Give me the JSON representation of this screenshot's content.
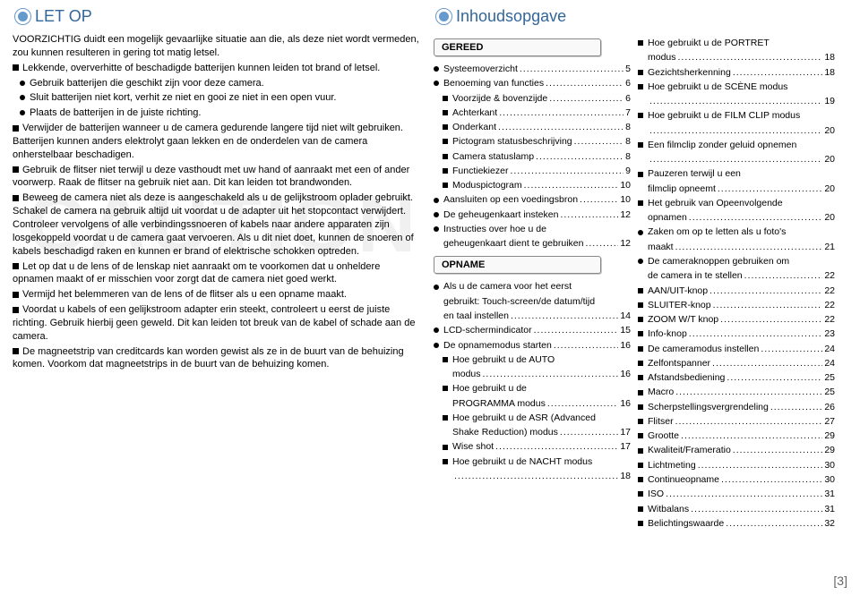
{
  "left": {
    "heading": "LET OP",
    "watermark": "CAUTION",
    "intro": "VOORZICHTIG duidt een mogelijk gevaarlijke situatie aan die, als deze niet wordt vermeden, zou kunnen resulteren in gering tot matig letsel.",
    "bullets": [
      {
        "text": "Lekkende, oververhitte of beschadigde batterijen kunnen leiden tot brand of letsel.",
        "subs": [
          "Gebruik batterijen die geschikt zijn voor deze camera.",
          "Sluit batterijen niet kort, verhit ze niet en gooi ze niet in een open vuur.",
          "Plaats de batterijen in de juiste richting."
        ]
      },
      {
        "text": "Verwijder de batterijen wanneer u de camera gedurende langere tijd niet wilt gebruiken. Batterijen kunnen anders elektrolyt gaan lekken en de onderdelen van de camera onherstelbaar beschadigen."
      },
      {
        "text": "Gebruik de flitser niet terwijl u deze vasthoudt met uw hand of aanraakt met een of ander voorwerp. Raak de flitser na gebruik niet aan. Dit kan leiden tot brandwonden."
      },
      {
        "text": "Beweeg de camera niet als deze is aangeschakeld als u de gelijkstroom oplader gebruikt. Schakel de camera na gebruik altijd uit voordat u de adapter uit het stopcontact verwijdert. Controleer vervolgens of alle verbindingssnoeren of kabels naar andere apparaten zijn losgekoppeld voordat u de camera gaat vervoeren. Als u dit niet doet, kunnen de snoeren of kabels beschadigd raken en kunnen er brand of elektrische schokken optreden."
      },
      {
        "text": "Let op dat u de lens of de lenskap niet aanraakt om te voorkomen dat u onheldere opnamen maakt of er misschien voor zorgt dat de camera niet goed werkt."
      },
      {
        "text": "Vermijd het belemmeren van de lens of de flitser als u een opname maakt."
      },
      {
        "text": "Voordat u kabels of een gelijkstroom adapter erin steekt, controleert u eerst de juiste richting. Gebruik hierbij geen geweld. Dit kan leiden tot breuk van de kabel of schade aan de camera."
      },
      {
        "text": "De magneetstrip van creditcards kan worden gewist als ze in de buurt van de behuizing komen. Voorkom dat magneetstrips in de buurt van de behuizing komen."
      }
    ]
  },
  "toc": {
    "heading": "Inhoudsopgave",
    "sections": [
      {
        "title": "GEREED"
      },
      {
        "title": "OPNAME"
      }
    ],
    "mid1": [
      {
        "label": "Systeemoverzicht",
        "pg": "5",
        "bullet": "dot"
      },
      {
        "label": "Benoeming van functies",
        "pg": "6",
        "bullet": "dot"
      },
      {
        "label": "Voorzijde & bovenzijde",
        "pg": "6",
        "bullet": "sq",
        "lvl": 2
      },
      {
        "label": "Achterkant",
        "pg": "7",
        "bullet": "sq",
        "lvl": 2
      },
      {
        "label": "Onderkant",
        "pg": "8",
        "bullet": "sq",
        "lvl": 2
      },
      {
        "label": "Pictogram statusbeschrijving",
        "pg": "8",
        "bullet": "sq",
        "lvl": 2
      },
      {
        "label": "Camera statuslamp",
        "pg": "8",
        "bullet": "sq",
        "lvl": 2
      },
      {
        "label": "Functiekiezer",
        "pg": "9",
        "bullet": "sq",
        "lvl": 2
      },
      {
        "label": "Moduspictogram",
        "pg": "10",
        "bullet": "sq",
        "lvl": 2
      },
      {
        "label": "Aansluiten op een voedingsbron",
        "pg": "10",
        "bullet": "dot"
      },
      {
        "label": "De geheugenkaart insteken",
        "pg": "12",
        "bullet": "dot"
      },
      {
        "label": "Instructies over hoe u de",
        "cont": "geheugenkaart dient te gebruiken",
        "pg": "12",
        "bullet": "dot"
      }
    ],
    "mid2": [
      {
        "label": "Als u de camera voor het eerst",
        "cont": "gebruikt: Touch-screen/de datum/tijd",
        "cont2": "en taal instellen",
        "pg": "14",
        "bullet": "dot"
      },
      {
        "label": "LCD-schermindicator",
        "pg": "15",
        "bullet": "dot"
      },
      {
        "label": "De opnamemodus starten",
        "pg": "16",
        "bullet": "dot"
      },
      {
        "label": "Hoe gebruikt u de AUTO",
        "cont": "modus",
        "pg": "16",
        "bullet": "sq",
        "lvl": 2
      },
      {
        "label": "Hoe gebruikt u de",
        "cont": "PROGRAMMA modus",
        "pg": "16",
        "bullet": "sq",
        "lvl": 2
      },
      {
        "label": "Hoe gebruikt u de ASR (Advanced",
        "cont": "Shake Reduction) modus",
        "pg": "17",
        "bullet": "sq",
        "lvl": 2
      },
      {
        "label": "Wise shot",
        "pg": "17",
        "bullet": "sq",
        "lvl": 2
      },
      {
        "label": "Hoe gebruikt u de NACHT modus",
        "pg": "18",
        "bullet": "sq",
        "lvl": 2,
        "pgline": true
      }
    ],
    "far": [
      {
        "label": "Hoe gebruikt u de PORTRET",
        "cont": "modus",
        "pg": "18",
        "bullet": "sq"
      },
      {
        "label": "Gezichtsherkenning",
        "pg": "18",
        "bullet": "sq"
      },
      {
        "label": "Hoe gebruikt u de SCÈNE modus",
        "pg": "19",
        "bullet": "sq",
        "pgline": true
      },
      {
        "label": "Hoe gebruikt u de FILM CLIP modus",
        "pg": "20",
        "bullet": "sq",
        "pgline": true
      },
      {
        "label": "Een filmclip zonder geluid opnemen",
        "pg": "20",
        "bullet": "sq",
        "pgline": true
      },
      {
        "label": "Pauzeren terwijl u een",
        "cont": "filmclip opneemt",
        "pg": "20",
        "bullet": "sq"
      },
      {
        "label": "Het gebruik van Opeenvolgende",
        "cont": "opnamen",
        "pg": "20",
        "bullet": "sq"
      },
      {
        "label": "Zaken om op te letten als u foto's",
        "cont": "maakt",
        "pg": "21",
        "bullet": "dot"
      },
      {
        "label": "De cameraknoppen gebruiken om",
        "cont": "de camera in te stellen",
        "pg": "22",
        "bullet": "dot"
      },
      {
        "label": "AAN/UIT-knop",
        "pg": "22",
        "bullet": "sq"
      },
      {
        "label": "SLUITER-knop",
        "pg": "22",
        "bullet": "sq"
      },
      {
        "label": "ZOOM W/T knop",
        "pg": "22",
        "bullet": "sq"
      },
      {
        "label": "Info-knop",
        "pg": "23",
        "bullet": "sq"
      },
      {
        "label": "De cameramodus instellen",
        "pg": "24",
        "bullet": "sq"
      },
      {
        "label": "Zelfontspanner",
        "pg": "24",
        "bullet": "sq"
      },
      {
        "label": "Afstandsbediening",
        "pg": "25",
        "bullet": "sq"
      },
      {
        "label": "Macro",
        "pg": "25",
        "bullet": "sq"
      },
      {
        "label": "Scherpstellingsvergrendeling",
        "pg": "26",
        "bullet": "sq"
      },
      {
        "label": "Flitser",
        "pg": "27",
        "bullet": "sq"
      },
      {
        "label": "Grootte",
        "pg": "29",
        "bullet": "sq"
      },
      {
        "label": "Kwaliteit/Frameratio",
        "pg": "29",
        "bullet": "sq"
      },
      {
        "label": "Lichtmeting",
        "pg": "30",
        "bullet": "sq"
      },
      {
        "label": "Continueopname",
        "pg": "30",
        "bullet": "sq"
      },
      {
        "label": "ISO",
        "pg": "31",
        "bullet": "sq"
      },
      {
        "label": "Witbalans",
        "pg": "31",
        "bullet": "sq"
      },
      {
        "label": "Belichtingswaarde",
        "pg": "32",
        "bullet": "sq"
      }
    ]
  },
  "pagenum": "[3]",
  "colors": {
    "accent": "#336699",
    "accent_light": "#6699cc"
  }
}
